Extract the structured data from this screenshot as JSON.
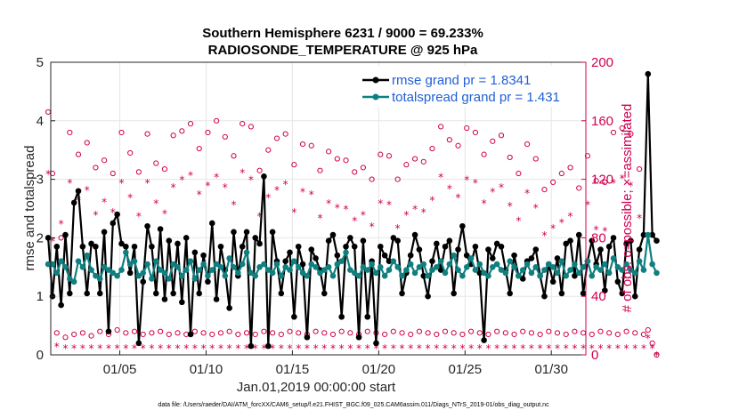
{
  "chart_data": {
    "type": "line",
    "title_line1": "Southern Hemisphere 6231 / 9000 = 69.233%",
    "title_line2": "RADIOSONDE_TEMPERATURE @ 925 hPa",
    "xlabel": "Jan.01,2019 00:00:00 start",
    "ylabel_left": "rmse and totalspread",
    "ylabel_right": "# of obs: o=possible; ×=assimilated",
    "x_ticks": [
      "01/05",
      "01/10",
      "01/15",
      "01/20",
      "01/25",
      "01/30"
    ],
    "x_tick_days": [
      5,
      10,
      15,
      20,
      25,
      30
    ],
    "xlim": [
      1,
      32
    ],
    "ylim_left": [
      0,
      5
    ],
    "yticks_left": [
      "0",
      "1",
      "2",
      "3",
      "4",
      "5"
    ],
    "ylim_right": [
      0,
      200
    ],
    "yticks_right": [
      "0",
      "40",
      "80",
      "120",
      "160",
      "200"
    ],
    "colors": {
      "rmse": "#000000",
      "spread": "#0f7f80",
      "obs": "#d1004f",
      "legend_text": "#1f5fd6"
    },
    "series": [
      {
        "name": "rmse grand pr = 1.8341",
        "key": "rmse",
        "values": [
          2.0,
          1.0,
          1.85,
          0.85,
          2.05,
          1.05,
          2.6,
          2.8,
          1.85,
          1.05,
          1.9,
          1.85,
          1.05,
          2.1,
          0.4,
          2.25,
          2.4,
          1.9,
          1.85,
          1.4,
          1.85,
          0.2,
          1.25,
          2.2,
          1.85,
          1.05,
          2.15,
          0.95,
          1.95,
          1.05,
          1.9,
          0.9,
          2.0,
          0.35,
          1.75,
          1.05,
          1.7,
          1.25,
          2.25,
          0.95,
          1.85,
          1.45,
          0.8,
          2.1,
          1.35,
          1.85,
          2.1,
          0.15,
          2.0,
          1.9,
          3.05,
          0.15,
          2.1,
          1.6,
          1.05,
          1.6,
          1.75,
          0.65,
          1.85,
          1.55,
          0.3,
          1.8,
          1.65,
          1.45,
          1.05,
          1.95,
          2.05,
          1.7,
          0.65,
          1.85,
          2.0,
          1.85,
          0.3,
          1.95,
          0.65,
          1.6,
          0.2,
          1.85,
          1.7,
          1.6,
          2.0,
          1.95,
          1.05,
          1.4,
          1.7,
          2.05,
          1.8,
          1.35,
          1.0,
          1.6,
          1.9,
          1.45,
          1.85,
          1.95,
          1.05,
          1.8,
          2.2,
          1.7,
          1.55,
          1.85,
          1.4,
          0.25,
          1.8,
          1.65,
          1.9,
          1.85,
          1.45,
          1.05,
          1.7,
          1.35,
          1.3,
          1.6,
          1.65,
          1.8,
          1.35,
          1.0,
          1.55,
          1.25,
          1.65,
          1.05,
          1.9,
          1.95,
          1.35,
          2.05,
          1.05,
          1.6,
          1.95,
          1.55,
          1.8,
          1.1,
          1.85,
          2.0,
          1.25,
          1.05,
          1.9,
          1.95,
          1.0,
          1.8,
          2.05,
          4.8,
          2.05,
          1.95
        ]
      },
      {
        "name": "totalspread grand pr = 1.431",
        "key": "spread",
        "values": [
          1.55,
          1.55,
          1.4,
          1.6,
          1.5,
          1.3,
          1.25,
          1.6,
          1.5,
          1.7,
          1.45,
          1.35,
          1.3,
          1.5,
          1.45,
          1.4,
          1.35,
          1.45,
          1.75,
          1.55,
          1.6,
          1.35,
          1.4,
          1.55,
          1.3,
          1.6,
          1.45,
          1.4,
          1.3,
          1.55,
          1.5,
          1.35,
          1.45,
          1.6,
          1.3,
          1.45,
          1.55,
          1.35,
          1.45,
          1.55,
          1.5,
          1.35,
          1.65,
          1.5,
          1.4,
          1.55,
          1.75,
          1.4,
          1.35,
          1.5,
          1.55,
          1.45,
          1.4,
          1.55,
          1.35,
          1.5,
          1.45,
          1.6,
          1.5,
          1.4,
          1.35,
          1.55,
          1.5,
          1.4,
          1.45,
          1.5,
          1.35,
          1.55,
          1.6,
          1.75,
          1.45,
          1.4,
          1.35,
          1.5,
          1.45,
          1.55,
          1.4,
          1.5,
          1.35,
          1.45,
          1.6,
          1.5,
          1.35,
          1.45,
          1.55,
          1.4,
          1.5,
          1.55,
          1.35,
          1.45,
          1.5,
          1.6,
          1.4,
          1.55,
          1.7,
          1.45,
          1.35,
          1.5,
          1.65,
          1.45,
          1.55,
          1.4,
          1.35,
          1.5,
          1.55,
          1.45,
          1.4,
          1.6,
          1.5,
          1.35,
          1.45,
          1.55,
          1.4,
          1.5,
          1.35,
          1.45,
          1.55,
          1.5,
          1.4,
          1.6,
          1.35,
          1.45,
          1.55,
          1.4,
          1.5,
          1.6,
          1.35,
          1.5,
          1.45,
          1.55,
          1.4,
          1.65,
          1.5,
          1.45,
          1.55,
          1.45,
          1.4,
          1.6,
          1.45,
          2.05,
          1.55,
          1.4
        ]
      }
    ],
    "obs_possible": [
      166,
      124,
      15,
      80,
      12,
      152,
      14,
      137,
      15,
      145,
      13,
      128,
      16,
      133,
      14,
      124,
      17,
      152,
      15,
      138,
      16,
      125,
      14,
      151,
      15,
      131,
      16,
      127,
      14,
      150,
      15,
      153,
      14,
      158,
      16,
      141,
      15,
      152,
      14,
      160,
      15,
      149,
      16,
      136,
      14,
      158,
      15,
      156,
      14,
      126,
      16,
      140,
      15,
      148,
      14,
      151,
      16,
      130,
      15,
      144,
      14,
      143,
      16,
      126,
      15,
      139,
      14,
      134,
      16,
      133,
      15,
      125,
      14,
      128,
      16,
      120,
      15,
      137,
      14,
      136,
      16,
      120,
      15,
      130,
      14,
      134,
      16,
      132,
      15,
      141,
      14,
      156,
      16,
      147,
      15,
      143,
      14,
      155,
      16,
      152,
      15,
      137,
      14,
      146,
      16,
      150,
      15,
      135,
      14,
      124,
      16,
      144,
      15,
      134,
      14,
      113,
      16,
      118,
      15,
      124,
      14,
      128,
      16,
      114,
      15,
      136,
      14,
      119,
      16,
      118,
      15,
      152,
      14,
      155,
      16,
      151,
      15,
      127,
      14,
      17,
      8,
      0
    ],
    "obs_assimilated": [
      124,
      78,
      6,
      90,
      5,
      118,
      5,
      106,
      5,
      113,
      5,
      96,
      5,
      105,
      5,
      98,
      5,
      118,
      5,
      108,
      5,
      95,
      5,
      118,
      5,
      104,
      5,
      97,
      5,
      115,
      5,
      120,
      5,
      123,
      5,
      110,
      5,
      116,
      5,
      122,
      5,
      115,
      5,
      103,
      5,
      125,
      5,
      120,
      5,
      95,
      5,
      108,
      5,
      113,
      5,
      117,
      5,
      98,
      5,
      112,
      5,
      110,
      5,
      94,
      5,
      104,
      5,
      101,
      5,
      100,
      5,
      92,
      5,
      96,
      5,
      88,
      5,
      104,
      5,
      103,
      5,
      87,
      5,
      96,
      5,
      100,
      5,
      98,
      5,
      106,
      5,
      122,
      5,
      114,
      5,
      108,
      5,
      120,
      5,
      118,
      5,
      104,
      5,
      112,
      5,
      115,
      5,
      102,
      5,
      92,
      5,
      111,
      5,
      101,
      5,
      82,
      5,
      87,
      5,
      91,
      5,
      95,
      5,
      81,
      5,
      103,
      5,
      86,
      5,
      85,
      5,
      118,
      5,
      121,
      5,
      116,
      5,
      94,
      5,
      12,
      5,
      0
    ],
    "footer": "data file: /Users/raeder/DAI/ATM_forcXX/CAM6_setup/f.e21.FHIST_BGC.f09_025.CAM6assim.011/Diags_NTrS_2019-01/obs_diag_output.nc"
  }
}
